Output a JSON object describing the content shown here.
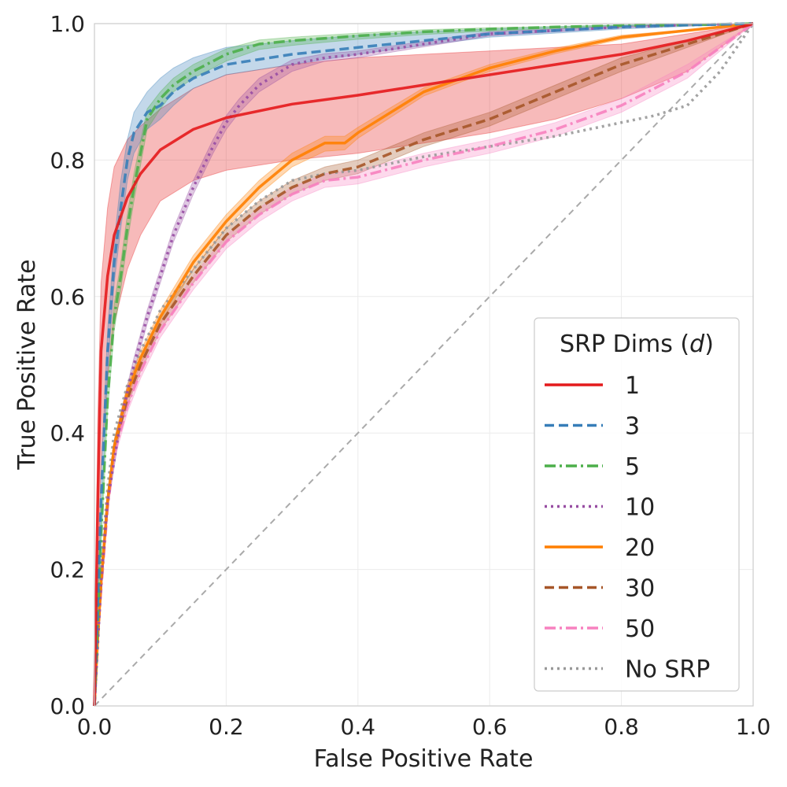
{
  "chart_data": {
    "type": "line",
    "title": "",
    "xlabel": "False Positive Rate",
    "ylabel": "True Positive Rate",
    "xlim": [
      0.0,
      1.0
    ],
    "ylim": [
      0.0,
      1.0
    ],
    "xticks": [
      "0.0",
      "0.2",
      "0.4",
      "0.6",
      "0.8",
      "1.0"
    ],
    "yticks": [
      "0.0",
      "0.2",
      "0.4",
      "0.6",
      "0.8",
      "1.0"
    ],
    "grid": true,
    "legend": {
      "title_prefix": "SRP Dims (",
      "title_var": "d",
      "title_suffix": ")",
      "placement": "lower-right"
    },
    "reference_line": {
      "name": "chance",
      "x": [
        0,
        1
      ],
      "y": [
        0,
        1
      ],
      "color": "#aaaaaa",
      "dash": "dashed"
    },
    "series": [
      {
        "name": "1",
        "color": "#e41a1c",
        "dash": "solid",
        "x": [
          0,
          0.005,
          0.01,
          0.02,
          0.03,
          0.05,
          0.07,
          0.1,
          0.15,
          0.2,
          0.3,
          0.4,
          0.5,
          0.6,
          0.7,
          0.8,
          0.9,
          1.0
        ],
        "y": [
          0,
          0.3,
          0.52,
          0.63,
          0.69,
          0.745,
          0.78,
          0.815,
          0.845,
          0.862,
          0.882,
          0.895,
          0.91,
          0.925,
          0.94,
          0.955,
          0.975,
          1.0
        ],
        "band_lower": [
          0,
          0.15,
          0.35,
          0.48,
          0.56,
          0.64,
          0.69,
          0.74,
          0.77,
          0.785,
          0.8,
          0.81,
          0.825,
          0.84,
          0.86,
          0.89,
          0.93,
          1.0
        ],
        "band_upper": [
          0,
          0.42,
          0.62,
          0.73,
          0.79,
          0.83,
          0.85,
          0.875,
          0.905,
          0.925,
          0.94,
          0.95,
          0.955,
          0.96,
          0.965,
          0.97,
          0.985,
          1.0
        ]
      },
      {
        "name": "3",
        "color": "#377eb8",
        "dash": "dashed",
        "x": [
          0,
          0.01,
          0.02,
          0.03,
          0.04,
          0.05,
          0.06,
          0.08,
          0.1,
          0.12,
          0.15,
          0.2,
          0.3,
          0.4,
          0.5,
          0.6,
          0.7,
          0.8,
          0.9,
          1.0
        ],
        "y": [
          0,
          0.3,
          0.52,
          0.65,
          0.73,
          0.8,
          0.84,
          0.87,
          0.88,
          0.9,
          0.92,
          0.94,
          0.955,
          0.965,
          0.975,
          0.985,
          0.99,
          0.995,
          0.998,
          1.0
        ],
        "band_lower": [
          0,
          0.27,
          0.49,
          0.62,
          0.7,
          0.77,
          0.81,
          0.845,
          0.86,
          0.88,
          0.905,
          0.925,
          0.94,
          0.955,
          0.968,
          0.98,
          0.986,
          0.992,
          0.996,
          1.0
        ],
        "band_upper": [
          0,
          0.33,
          0.55,
          0.68,
          0.77,
          0.83,
          0.87,
          0.9,
          0.92,
          0.935,
          0.95,
          0.965,
          0.975,
          0.983,
          0.988,
          0.992,
          0.995,
          0.998,
          0.999,
          1.0
        ]
      },
      {
        "name": "5",
        "color": "#4daf4a",
        "dash": "dashdot",
        "x": [
          0,
          0.01,
          0.02,
          0.03,
          0.04,
          0.05,
          0.06,
          0.08,
          0.1,
          0.12,
          0.15,
          0.2,
          0.25,
          0.3,
          0.4,
          0.5,
          0.6,
          0.7,
          0.8,
          0.9,
          1.0
        ],
        "y": [
          0,
          0.25,
          0.45,
          0.57,
          0.63,
          0.7,
          0.76,
          0.86,
          0.89,
          0.91,
          0.93,
          0.955,
          0.97,
          0.975,
          0.982,
          0.988,
          0.992,
          0.995,
          0.997,
          0.998,
          1.0
        ],
        "band_lower": [
          0,
          0.23,
          0.43,
          0.55,
          0.61,
          0.68,
          0.74,
          0.845,
          0.875,
          0.9,
          0.92,
          0.945,
          0.962,
          0.968,
          0.977,
          0.984,
          0.989,
          0.993,
          0.996,
          0.998,
          1.0
        ],
        "band_upper": [
          0,
          0.27,
          0.47,
          0.59,
          0.65,
          0.72,
          0.78,
          0.875,
          0.9,
          0.92,
          0.94,
          0.963,
          0.976,
          0.98,
          0.986,
          0.991,
          0.994,
          0.996,
          0.998,
          0.999,
          1.0
        ]
      },
      {
        "name": "10",
        "color": "#984ea3",
        "dash": "dotted",
        "x": [
          0,
          0.01,
          0.02,
          0.04,
          0.06,
          0.08,
          0.1,
          0.12,
          0.15,
          0.18,
          0.2,
          0.22,
          0.25,
          0.3,
          0.35,
          0.4,
          0.5,
          0.6,
          0.7,
          0.8,
          0.9,
          1.0
        ],
        "y": [
          0,
          0.18,
          0.3,
          0.42,
          0.5,
          0.57,
          0.63,
          0.69,
          0.76,
          0.82,
          0.855,
          0.88,
          0.91,
          0.94,
          0.95,
          0.955,
          0.97,
          0.985,
          0.99,
          0.995,
          0.998,
          1.0
        ],
        "band_lower": [
          0,
          0.17,
          0.29,
          0.41,
          0.49,
          0.56,
          0.62,
          0.68,
          0.75,
          0.81,
          0.845,
          0.87,
          0.9,
          0.93,
          0.945,
          0.95,
          0.966,
          0.982,
          0.988,
          0.994,
          0.997,
          1.0
        ],
        "band_upper": [
          0,
          0.19,
          0.31,
          0.43,
          0.51,
          0.58,
          0.64,
          0.7,
          0.77,
          0.83,
          0.865,
          0.89,
          0.92,
          0.947,
          0.956,
          0.96,
          0.974,
          0.988,
          0.992,
          0.996,
          0.999,
          1.0
        ]
      },
      {
        "name": "20",
        "color": "#ff7f00",
        "dash": "solid",
        "x": [
          0,
          0.005,
          0.01,
          0.02,
          0.03,
          0.05,
          0.07,
          0.1,
          0.15,
          0.2,
          0.25,
          0.3,
          0.35,
          0.38,
          0.4,
          0.45,
          0.5,
          0.6,
          0.7,
          0.8,
          0.9,
          1.0
        ],
        "y": [
          0,
          0.1,
          0.18,
          0.3,
          0.38,
          0.46,
          0.51,
          0.57,
          0.65,
          0.71,
          0.76,
          0.8,
          0.825,
          0.825,
          0.84,
          0.87,
          0.9,
          0.935,
          0.96,
          0.98,
          0.99,
          1.0
        ],
        "band_lower": [
          0,
          0.09,
          0.17,
          0.29,
          0.37,
          0.45,
          0.5,
          0.56,
          0.64,
          0.7,
          0.75,
          0.79,
          0.813,
          0.815,
          0.832,
          0.863,
          0.894,
          0.93,
          0.956,
          0.977,
          0.989,
          1.0
        ],
        "band_upper": [
          0,
          0.11,
          0.19,
          0.31,
          0.39,
          0.47,
          0.52,
          0.58,
          0.66,
          0.72,
          0.77,
          0.81,
          0.835,
          0.835,
          0.848,
          0.877,
          0.906,
          0.94,
          0.964,
          0.983,
          0.991,
          1.0
        ]
      },
      {
        "name": "30",
        "color": "#a65628",
        "dash": "dashed",
        "x": [
          0,
          0.005,
          0.01,
          0.02,
          0.03,
          0.05,
          0.07,
          0.1,
          0.15,
          0.2,
          0.25,
          0.3,
          0.35,
          0.4,
          0.5,
          0.6,
          0.7,
          0.8,
          0.9,
          1.0
        ],
        "y": [
          0,
          0.1,
          0.18,
          0.3,
          0.38,
          0.45,
          0.5,
          0.56,
          0.63,
          0.69,
          0.73,
          0.76,
          0.78,
          0.79,
          0.83,
          0.86,
          0.9,
          0.94,
          0.97,
          1.0
        ],
        "band_lower": [
          0,
          0.09,
          0.17,
          0.29,
          0.37,
          0.44,
          0.49,
          0.55,
          0.62,
          0.68,
          0.72,
          0.75,
          0.77,
          0.78,
          0.82,
          0.85,
          0.89,
          0.93,
          0.965,
          1.0
        ],
        "band_upper": [
          0,
          0.11,
          0.19,
          0.31,
          0.39,
          0.46,
          0.51,
          0.57,
          0.64,
          0.7,
          0.74,
          0.77,
          0.79,
          0.8,
          0.84,
          0.87,
          0.91,
          0.95,
          0.975,
          1.0
        ]
      },
      {
        "name": "50",
        "color": "#f781bf",
        "dash": "dashdot",
        "x": [
          0,
          0.005,
          0.01,
          0.02,
          0.03,
          0.05,
          0.07,
          0.1,
          0.15,
          0.2,
          0.25,
          0.3,
          0.35,
          0.4,
          0.5,
          0.6,
          0.7,
          0.8,
          0.9,
          1.0
        ],
        "y": [
          0,
          0.1,
          0.17,
          0.29,
          0.37,
          0.44,
          0.49,
          0.55,
          0.62,
          0.68,
          0.72,
          0.75,
          0.77,
          0.775,
          0.8,
          0.82,
          0.845,
          0.88,
          0.93,
          1.0
        ],
        "band_lower": [
          0,
          0.09,
          0.16,
          0.28,
          0.36,
          0.43,
          0.48,
          0.54,
          0.61,
          0.67,
          0.71,
          0.74,
          0.76,
          0.765,
          0.79,
          0.81,
          0.835,
          0.87,
          0.92,
          1.0
        ],
        "band_upper": [
          0,
          0.11,
          0.18,
          0.3,
          0.38,
          0.45,
          0.5,
          0.56,
          0.63,
          0.69,
          0.73,
          0.76,
          0.78,
          0.785,
          0.81,
          0.83,
          0.855,
          0.89,
          0.94,
          1.0
        ]
      },
      {
        "name": "No SRP",
        "color": "#999999",
        "dash": "dotted",
        "x": [
          0,
          0.005,
          0.01,
          0.02,
          0.03,
          0.05,
          0.07,
          0.1,
          0.15,
          0.2,
          0.25,
          0.3,
          0.35,
          0.4,
          0.5,
          0.6,
          0.7,
          0.8,
          0.85,
          0.9,
          0.95,
          1.0
        ],
        "y": [
          0,
          0.12,
          0.2,
          0.32,
          0.4,
          0.47,
          0.52,
          0.58,
          0.64,
          0.7,
          0.74,
          0.77,
          0.78,
          0.785,
          0.805,
          0.82,
          0.835,
          0.855,
          0.865,
          0.88,
          0.93,
          1.0
        ]
      }
    ]
  }
}
